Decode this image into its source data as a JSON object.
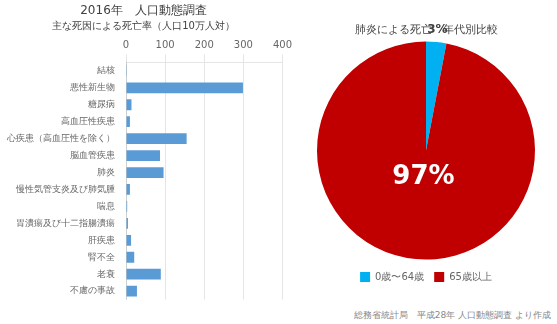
{
  "chart_data": [
    {
      "type": "bar",
      "orientation": "horizontal",
      "title": "2016年　人口動態調査",
      "subtitle": "主な死因による死亡率（人口10万人対）",
      "categories": [
        "結核",
        "悪性新生物",
        "糖尿病",
        "高血圧性疾患",
        "心疾患（高血圧性を除く）",
        "脳血管疾患",
        "肺炎",
        "慢性気管支炎及び肺気腫",
        "喘息",
        "胃潰瘍及び十二指腸潰瘍",
        "肝疾患",
        "腎不全",
        "老衰",
        "不慮の事故"
      ],
      "values": [
        2,
        299,
        14,
        10,
        155,
        87,
        96,
        10,
        3,
        5,
        13,
        21,
        89,
        28
      ],
      "color": "#5B9BD5",
      "xlim": [
        0,
        400
      ],
      "xticks": [
        0,
        100,
        200,
        300,
        400
      ],
      "grid": true
    },
    {
      "type": "pie",
      "title": "肺炎による死亡　年代別比較",
      "categories": [
        "0歳〜64歳",
        "65歳以上"
      ],
      "values": [
        3,
        97
      ],
      "value_labels": [
        "3%",
        "97%"
      ],
      "data_labels": true,
      "colors": [
        "#00B0F0",
        "#C00000"
      ],
      "legend": "bottom",
      "annotations": [
        "総務省統計局　平成28年 人口動態調査 より作成"
      ]
    }
  ]
}
